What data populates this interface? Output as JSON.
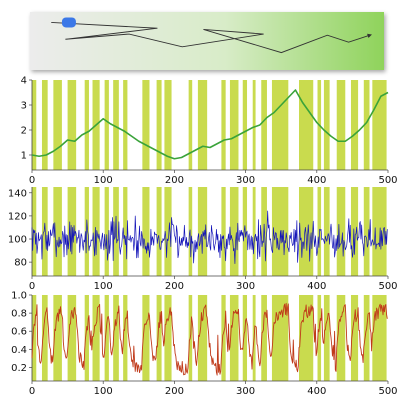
{
  "colors": {
    "band": "#c9db4e",
    "trajectory_stroke": "#333333",
    "start_marker": "#3b78e7",
    "arena_gradient_start": "#ececec",
    "arena_gradient_end": "#8fd35b",
    "panel1_line": "#3aa33a",
    "panel2_line": "#1414b8",
    "panel3_line": "#c03a1a"
  },
  "chart_data": [
    {
      "type": "line",
      "panel": "trajectory",
      "description_of_marks": "random-walk trajectory with start marker and end arrow",
      "points": [
        [
          0.06,
          0.18
        ],
        [
          0.36,
          0.28
        ],
        [
          0.1,
          0.47
        ],
        [
          0.28,
          0.38
        ],
        [
          0.43,
          0.6
        ],
        [
          0.66,
          0.38
        ],
        [
          0.49,
          0.3
        ],
        [
          0.71,
          0.7
        ],
        [
          0.84,
          0.4
        ],
        [
          0.9,
          0.52
        ],
        [
          0.96,
          0.4
        ]
      ],
      "xlim": [
        0,
        1
      ],
      "ylim": [
        0,
        1
      ],
      "start_marker": [
        0.11,
        0.18
      ]
    },
    {
      "type": "line",
      "panel": "panel1",
      "x": [
        0,
        10,
        20,
        30,
        40,
        50,
        60,
        70,
        80,
        90,
        100,
        110,
        120,
        130,
        140,
        150,
        160,
        170,
        180,
        190,
        200,
        210,
        220,
        230,
        240,
        250,
        260,
        270,
        280,
        290,
        300,
        310,
        320,
        330,
        340,
        350,
        360,
        370,
        380,
        390,
        400,
        410,
        420,
        430,
        440,
        450,
        460,
        470,
        480,
        490,
        500
      ],
      "values": [
        1.0,
        0.95,
        1.0,
        1.15,
        1.35,
        1.6,
        1.55,
        1.8,
        1.95,
        2.2,
        2.45,
        2.25,
        2.1,
        1.95,
        1.75,
        1.55,
        1.4,
        1.25,
        1.1,
        0.95,
        0.85,
        0.9,
        1.05,
        1.2,
        1.35,
        1.3,
        1.45,
        1.6,
        1.65,
        1.8,
        1.95,
        2.1,
        2.2,
        2.5,
        2.7,
        3.0,
        3.3,
        3.6,
        3.1,
        2.7,
        2.3,
        2.0,
        1.75,
        1.55,
        1.55,
        1.75,
        2.0,
        2.3,
        2.8,
        3.35,
        3.5
      ],
      "xlim": [
        0,
        500
      ],
      "ylim": [
        0.4,
        4
      ],
      "xticks": [
        0,
        100,
        200,
        300,
        400,
        500
      ],
      "yticks": [
        1,
        2,
        3,
        4
      ]
    },
    {
      "type": "line",
      "panel": "panel2",
      "generator": "noise",
      "mean": 100,
      "noise_amplitude": 12,
      "samples": 500,
      "seed": 7,
      "xlim": [
        0,
        500
      ],
      "ylim": [
        68,
        145
      ],
      "xticks": [
        0,
        100,
        200,
        300,
        400,
        500
      ],
      "yticks": [
        80,
        100,
        120,
        140
      ]
    },
    {
      "type": "line",
      "panel": "panel3",
      "generator": "switching",
      "samples": 500,
      "seed": 3,
      "high_level": 0.84,
      "low_level": 0.18,
      "xlim": [
        0,
        500
      ],
      "ylim": [
        0.05,
        1.0
      ],
      "xticks": [
        0,
        100,
        200,
        300,
        400,
        500
      ],
      "yticks": [
        0.2,
        0.4,
        0.6,
        0.8,
        1.0
      ]
    }
  ],
  "bands": [
    [
      0,
      6
    ],
    [
      14,
      22
    ],
    [
      30,
      42
    ],
    [
      50,
      62
    ],
    [
      74,
      80
    ],
    [
      85,
      95
    ],
    [
      102,
      108
    ],
    [
      114,
      122
    ],
    [
      128,
      134
    ],
    [
      155,
      165
    ],
    [
      175,
      182
    ],
    [
      186,
      196
    ],
    [
      220,
      225
    ],
    [
      233,
      246
    ],
    [
      266,
      272
    ],
    [
      278,
      290
    ],
    [
      296,
      302
    ],
    [
      310,
      314
    ],
    [
      322,
      330
    ],
    [
      337,
      360
    ],
    [
      375,
      395
    ],
    [
      401,
      406
    ],
    [
      410,
      418
    ],
    [
      428,
      440
    ],
    [
      448,
      458
    ],
    [
      466,
      474
    ],
    [
      478,
      498
    ]
  ],
  "tick_labels": {
    "x": [
      "0",
      "100",
      "200",
      "300",
      "400",
      "500"
    ],
    "p1_y": [
      "1",
      "2",
      "3",
      "4"
    ],
    "p2_y": [
      "80",
      "100",
      "120",
      "140"
    ],
    "p3_y": [
      "0.2",
      "0.4",
      "0.6",
      "0.8",
      "1.0"
    ]
  }
}
